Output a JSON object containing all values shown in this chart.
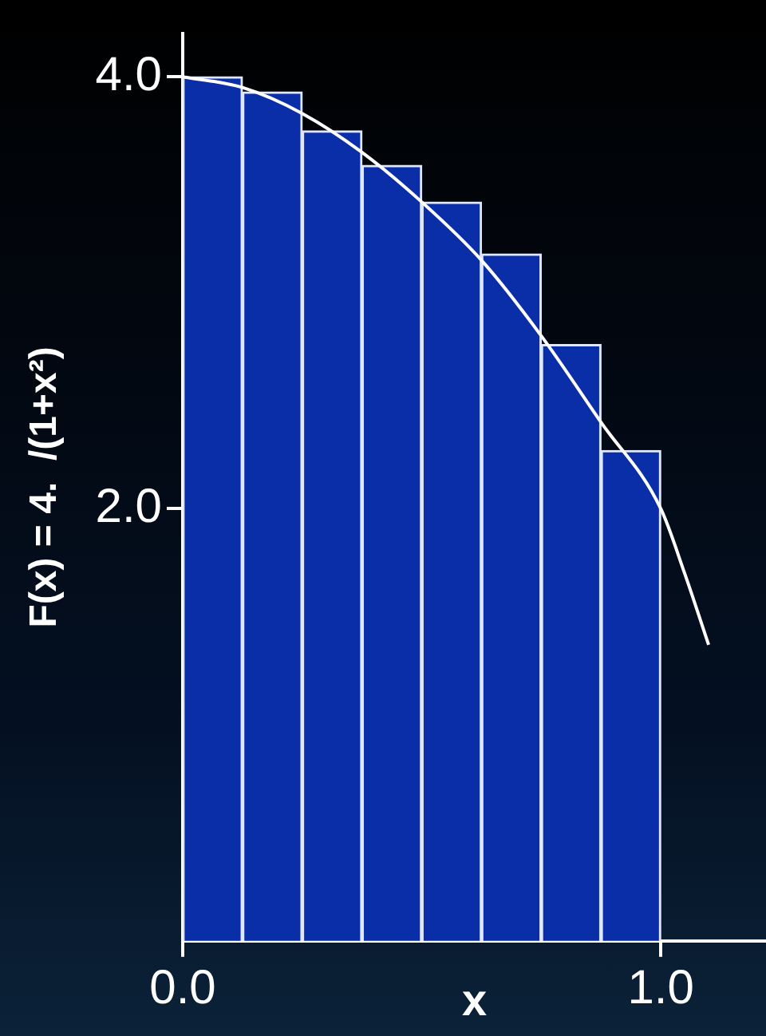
{
  "chart_data": {
    "type": "bar",
    "xlabel": "x",
    "ylabel": "F(x) = 4.  /(1+x²)",
    "x": [
      0.0625,
      0.1875,
      0.3125,
      0.4375,
      0.5625,
      0.6875,
      0.8125,
      0.9375
    ],
    "series": [
      {
        "color": "#0a2ea8",
        "values": [
          4.0,
          3.93,
          3.75,
          3.59,
          3.42,
          3.18,
          2.76,
          2.27
        ]
      },
      {
        "type": "line",
        "color": "#ffffff",
        "x": [
          0,
          0.125,
          0.25,
          0.375,
          0.5,
          0.625,
          0.75,
          0.875,
          1.0,
          1.05,
          1.1
        ],
        "values": [
          4.0,
          3.95,
          3.83,
          3.65,
          3.42,
          3.15,
          2.8,
          2.4,
          2.0,
          1.7,
          1.37
        ]
      }
    ],
    "xlim": [
      0,
      1.22
    ],
    "ylim": [
      0,
      4.2
    ],
    "xticks": [
      {
        "value": 0,
        "label": "0.0"
      },
      {
        "value": 1,
        "label": "1.0"
      }
    ],
    "yticks": [
      {
        "value": 2,
        "label": "2.0"
      },
      {
        "value": 4,
        "label": "4.0"
      }
    ],
    "grid": false,
    "legend": false,
    "marker": "none",
    "line_style": "solid"
  }
}
